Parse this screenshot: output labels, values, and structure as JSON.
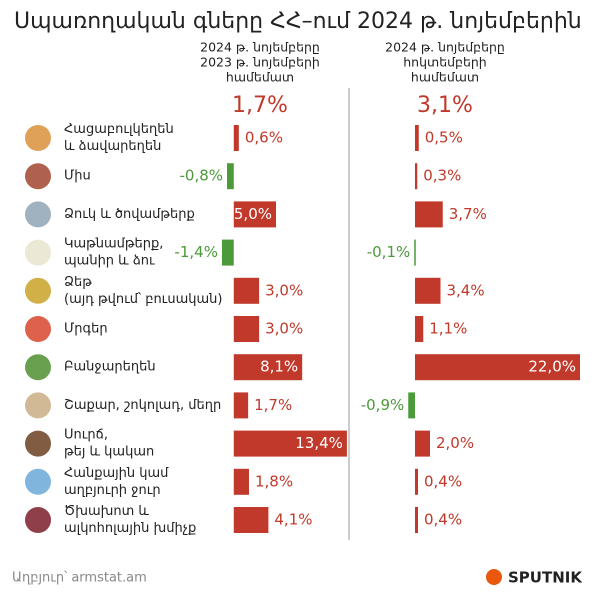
{
  "chart_data": {
    "type": "bar",
    "title": "Սպառողական գները ՀՀ–ում 2024 թ. նոյեմբերին",
    "categories": [
      [
        "Հացաբուլկեղեն",
        "և ձավարեղեն"
      ],
      [
        "Միս"
      ],
      [
        "Ձուկ և ծովամթերք"
      ],
      [
        "Կաթնամթերք,",
        "պանիր և ձու"
      ],
      [
        "Ձեթ",
        "(այդ թվում՝ բուսական)"
      ],
      [
        "Մրգեր"
      ],
      [
        "Բանջարեղեն"
      ],
      [
        "Շաքար, շոկոլադ, մեղր"
      ],
      [
        "Սուրճ,",
        "թեյ և կակաո"
      ],
      [
        "Հանքային կամ",
        "աղբյուրի ջուր"
      ],
      [
        "Ծխախոտ և",
        "ալկոհոլային խմիչք"
      ]
    ],
    "series": [
      {
        "name": [
          "2024 թ. նոյեմբերը",
          "2023 թ. նոյեմբերի",
          "համեմատ"
        ],
        "total": "1,7%",
        "color": "#c0392b",
        "negative_color": "#4c9a3a",
        "xlim": [
          -4,
          14
        ],
        "values": [
          0.6,
          -0.8,
          5.0,
          -1.4,
          3.0,
          3.0,
          8.1,
          1.7,
          13.4,
          1.8,
          4.1
        ],
        "value_labels": [
          "0,6%",
          "-0,8%",
          "5,0%",
          "-1,4%",
          "3,0%",
          "3,0%",
          "8,1%",
          "1,7%",
          "13,4%",
          "1,8%",
          "4,1%"
        ]
      },
      {
        "name": [
          "2024 թ. նոյեմբերը",
          "հոկտեմբերի",
          "համեմատ"
        ],
        "total": "3,1%",
        "color": "#c0392b",
        "negative_color": "#4c9a3a",
        "xlim": [
          -4,
          22
        ],
        "values": [
          0.5,
          0.3,
          3.7,
          -0.1,
          3.4,
          1.1,
          22.0,
          -0.9,
          2.0,
          0.4,
          0.4
        ],
        "value_labels": [
          "0,5%",
          "0,3%",
          "3,7%",
          "-0,1%",
          "3,4%",
          "1,1%",
          "22,0%",
          "-0,9%",
          "2,0%",
          "0,4%",
          "0,4%"
        ]
      }
    ],
    "source": "Աղբյուր՝ armstat.am",
    "logo": "SPUTNIK"
  }
}
